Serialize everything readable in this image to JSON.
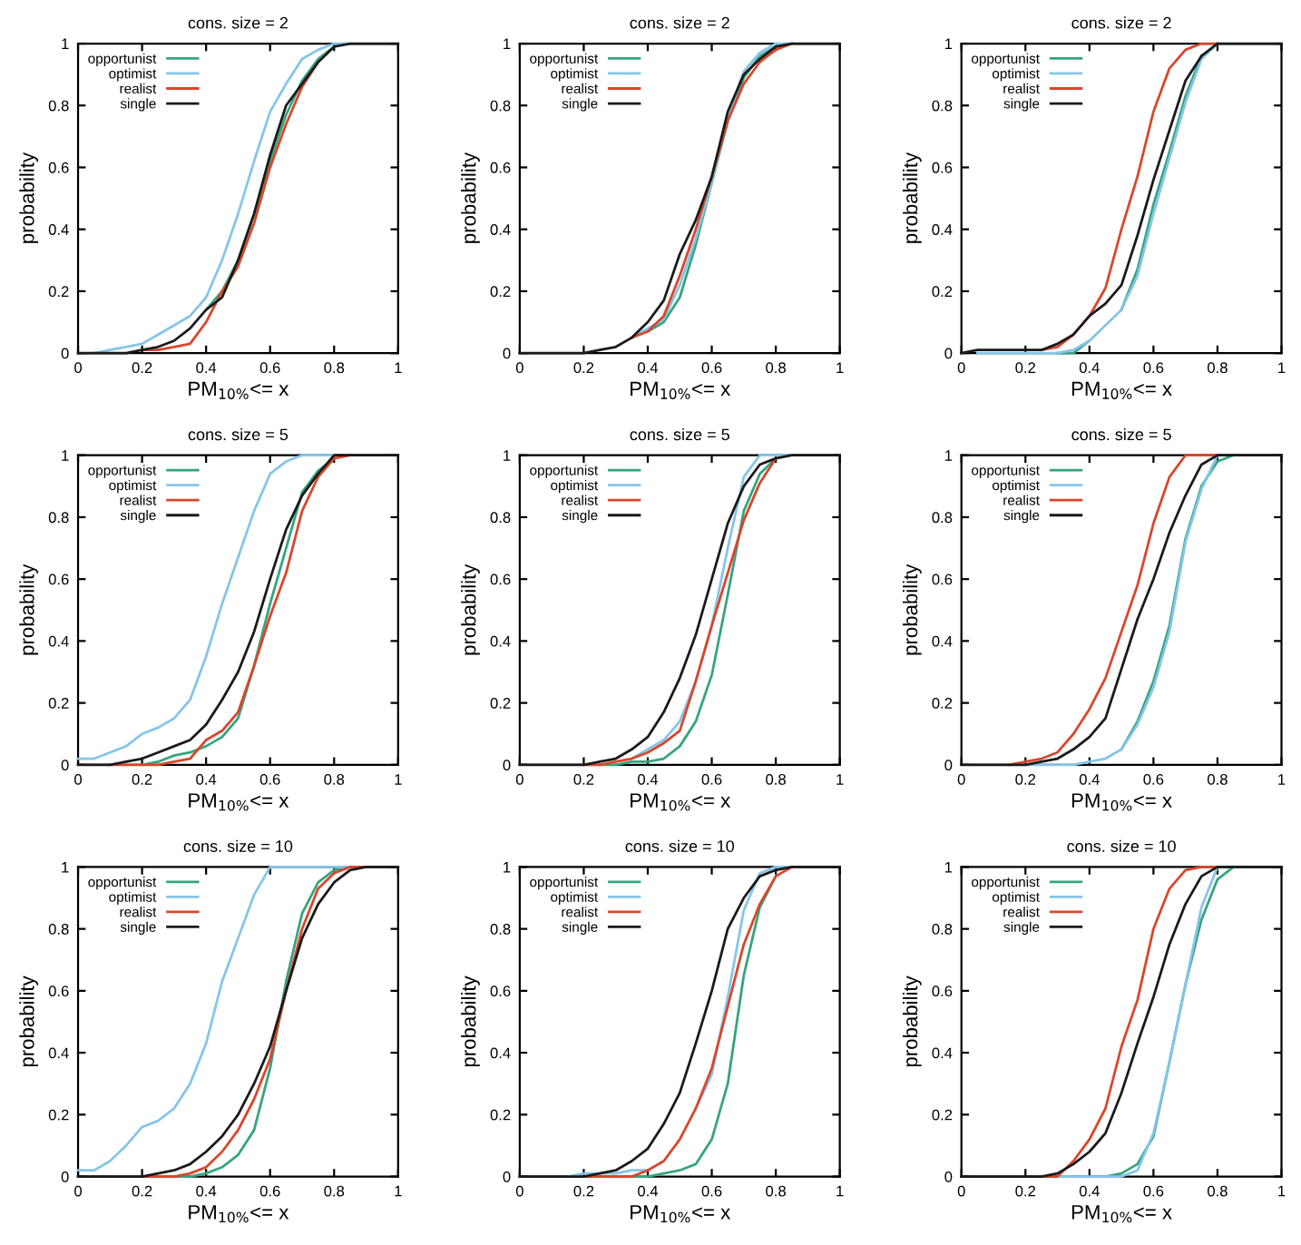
{
  "chart_data": [
    {
      "type": "line",
      "title": "cons. size = 2",
      "xlabel": "PM$_{10%}$<= x",
      "ylabel": "probability",
      "legend": "top left",
      "xlim": [
        0,
        1
      ],
      "ylim": [
        0,
        1
      ],
      "xticks": [
        0,
        0.2,
        0.4,
        0.6,
        0.8,
        1
      ],
      "yticks": [
        0,
        0.2,
        0.4,
        0.6,
        0.8,
        1
      ],
      "x": [
        0,
        0.05,
        0.1,
        0.15,
        0.2,
        0.25,
        0.3,
        0.35,
        0.4,
        0.45,
        0.5,
        0.55,
        0.6,
        0.65,
        0.7,
        0.75,
        0.8,
        0.85,
        0.9,
        0.95,
        1
      ],
      "series": [
        {
          "name": "opportunist",
          "color": "#35a47f",
          "values": [
            null,
            null,
            null,
            null,
            null,
            null,
            null,
            null,
            0.14,
            0.2,
            0.3,
            0.45,
            0.62,
            0.77,
            0.88,
            0.95,
            0.99,
            null,
            null,
            null,
            null
          ]
        },
        {
          "name": "optimist",
          "color": "#86c5e8",
          "values": [
            null,
            0,
            0.01,
            0.02,
            0.03,
            0.06,
            0.09,
            0.12,
            0.18,
            0.3,
            0.45,
            0.62,
            0.78,
            0.87,
            0.95,
            0.98,
            1,
            1,
            null,
            null,
            null
          ]
        },
        {
          "name": "realist",
          "color": "#d9462c",
          "values": [
            null,
            null,
            null,
            null,
            0.01,
            0.01,
            0.02,
            0.03,
            0.1,
            0.2,
            0.28,
            0.42,
            0.6,
            0.74,
            0.86,
            0.94,
            null,
            null,
            null,
            null,
            null
          ]
        },
        {
          "name": "single",
          "color": "#1a1a1a",
          "values": [
            0,
            0,
            0,
            0,
            0.01,
            0.02,
            0.04,
            0.08,
            0.14,
            0.18,
            0.3,
            0.45,
            0.64,
            0.8,
            0.87,
            0.94,
            0.99,
            1,
            1,
            1,
            1
          ]
        }
      ]
    },
    {
      "type": "line",
      "title": "cons. size = 2",
      "xlabel": "PM$_{10%}$<= x",
      "ylabel": "probability",
      "legend": "top left",
      "xlim": [
        0,
        1
      ],
      "ylim": [
        0,
        1
      ],
      "xticks": [
        0,
        0.2,
        0.4,
        0.6,
        0.8,
        1
      ],
      "yticks": [
        0,
        0.2,
        0.4,
        0.6,
        0.8,
        1
      ],
      "x": [
        0,
        0.05,
        0.1,
        0.15,
        0.2,
        0.25,
        0.3,
        0.35,
        0.4,
        0.45,
        0.5,
        0.55,
        0.6,
        0.65,
        0.7,
        0.75,
        0.8,
        0.85,
        0.9,
        0.95,
        1
      ],
      "series": [
        {
          "name": "opportunist",
          "color": "#35a47f",
          "values": [
            null,
            null,
            null,
            null,
            null,
            null,
            null,
            null,
            0.07,
            0.1,
            0.18,
            0.35,
            0.55,
            0.75,
            0.89,
            0.96,
            0.99,
            null,
            null,
            null,
            null
          ]
        },
        {
          "name": "optimist",
          "color": "#86c5e8",
          "values": [
            null,
            null,
            null,
            null,
            null,
            null,
            null,
            0.05,
            0.08,
            0.11,
            0.22,
            0.37,
            0.55,
            0.76,
            0.91,
            0.97,
            1,
            1,
            null,
            null,
            null
          ]
        },
        {
          "name": "realist",
          "color": "#d9462c",
          "values": [
            null,
            null,
            null,
            null,
            null,
            null,
            null,
            0.05,
            0.07,
            0.12,
            0.25,
            0.4,
            0.57,
            0.75,
            0.87,
            0.94,
            0.98,
            1,
            null,
            null,
            null
          ]
        },
        {
          "name": "single",
          "color": "#1a1a1a",
          "values": [
            0,
            0,
            0,
            0,
            0,
            0.01,
            0.02,
            0.05,
            0.1,
            0.17,
            0.32,
            0.43,
            0.57,
            0.78,
            0.9,
            0.95,
            0.99,
            1,
            1,
            1,
            1
          ]
        }
      ]
    },
    {
      "type": "line",
      "title": "cons. size = 2",
      "xlabel": "PM$_{10%}$<= x",
      "ylabel": "probability",
      "legend": "top left",
      "xlim": [
        0,
        1
      ],
      "ylim": [
        0,
        1
      ],
      "xticks": [
        0,
        0.2,
        0.4,
        0.6,
        0.8,
        1
      ],
      "yticks": [
        0,
        0.2,
        0.4,
        0.6,
        0.8,
        1
      ],
      "x": [
        0,
        0.05,
        0.1,
        0.15,
        0.2,
        0.25,
        0.3,
        0.35,
        0.4,
        0.45,
        0.5,
        0.55,
        0.6,
        0.65,
        0.7,
        0.75,
        0.8,
        0.85,
        0.9,
        0.95,
        1
      ],
      "series": [
        {
          "name": "opportunist",
          "color": "#35a47f",
          "values": [
            null,
            null,
            null,
            null,
            null,
            null,
            0,
            0,
            0.04,
            null,
            0.14,
            0.27,
            0.48,
            0.65,
            0.83,
            0.96,
            null,
            null,
            null,
            null,
            null
          ]
        },
        {
          "name": "optimist",
          "color": "#86c5e8",
          "values": [
            null,
            0,
            0,
            0,
            0,
            0,
            0,
            0.01,
            0.04,
            0.09,
            0.14,
            0.25,
            0.45,
            0.63,
            0.81,
            0.95,
            1,
            null,
            null,
            null,
            null
          ]
        },
        {
          "name": "realist",
          "color": "#d9462c",
          "values": [
            null,
            null,
            null,
            null,
            null,
            0.01,
            0.02,
            0.06,
            0.12,
            0.21,
            0.4,
            0.57,
            0.78,
            0.92,
            0.98,
            1,
            1,
            null,
            null,
            null,
            null
          ]
        },
        {
          "name": "single",
          "color": "#1a1a1a",
          "values": [
            0,
            0.01,
            0.01,
            0.01,
            0.01,
            0.01,
            0.03,
            0.06,
            0.12,
            0.16,
            0.22,
            0.38,
            0.56,
            0.72,
            0.88,
            0.96,
            1,
            1,
            1,
            1,
            1
          ]
        }
      ]
    },
    {
      "type": "line",
      "title": "cons. size = 5",
      "xlabel": "PM$_{10%}$<= x",
      "ylabel": "probability",
      "legend": "top left",
      "xlim": [
        0,
        1
      ],
      "ylim": [
        0,
        1
      ],
      "xticks": [
        0,
        0.2,
        0.4,
        0.6,
        0.8,
        1
      ],
      "yticks": [
        0,
        0.2,
        0.4,
        0.6,
        0.8,
        1
      ],
      "x": [
        0,
        0.05,
        0.1,
        0.15,
        0.2,
        0.25,
        0.3,
        0.35,
        0.4,
        0.45,
        0.5,
        0.55,
        0.6,
        0.65,
        0.7,
        0.75,
        0.8,
        0.85,
        0.9,
        0.95,
        1
      ],
      "series": [
        {
          "name": "opportunist",
          "color": "#35a47f",
          "values": [
            null,
            null,
            null,
            null,
            0,
            0.01,
            0.03,
            0.04,
            0.06,
            0.09,
            0.15,
            0.32,
            0.52,
            0.7,
            0.88,
            0.95,
            0.99,
            null,
            null,
            null,
            null
          ]
        },
        {
          "name": "optimist",
          "color": "#86c5e8",
          "values": [
            0.02,
            0.02,
            0.04,
            0.06,
            0.1,
            0.12,
            0.15,
            0.21,
            0.35,
            0.52,
            0.67,
            0.82,
            0.94,
            0.98,
            1,
            1,
            1,
            null,
            null,
            null,
            null
          ]
        },
        {
          "name": "realist",
          "color": "#d9462c",
          "values": [
            null,
            null,
            0,
            0,
            0,
            0,
            0.01,
            0.02,
            0.08,
            0.11,
            0.17,
            0.32,
            0.48,
            0.62,
            0.82,
            0.93,
            0.99,
            1,
            null,
            null,
            null
          ]
        },
        {
          "name": "single",
          "color": "#1a1a1a",
          "values": [
            0,
            0,
            0,
            0.01,
            0.02,
            0.04,
            0.06,
            0.08,
            0.13,
            0.21,
            0.3,
            0.43,
            0.6,
            0.76,
            0.87,
            0.94,
            1,
            1,
            1,
            1,
            1
          ]
        }
      ]
    },
    {
      "type": "line",
      "title": "cons. size = 5",
      "xlabel": "PM$_{10%}$<= x",
      "ylabel": "probability",
      "legend": "top left",
      "xlim": [
        0,
        1
      ],
      "ylim": [
        0,
        1
      ],
      "xticks": [
        0,
        0.2,
        0.4,
        0.6,
        0.8,
        1
      ],
      "yticks": [
        0,
        0.2,
        0.4,
        0.6,
        0.8,
        1
      ],
      "x": [
        0,
        0.05,
        0.1,
        0.15,
        0.2,
        0.25,
        0.3,
        0.35,
        0.4,
        0.45,
        0.5,
        0.55,
        0.6,
        0.65,
        0.7,
        0.75,
        0.8,
        0.85,
        0.9,
        0.95,
        1
      ],
      "series": [
        {
          "name": "opportunist",
          "color": "#35a47f",
          "values": [
            null,
            null,
            null,
            null,
            null,
            0,
            0,
            0.01,
            0.01,
            0.02,
            0.06,
            0.14,
            0.29,
            0.55,
            0.82,
            0.94,
            0.99,
            null,
            null,
            null,
            null
          ]
        },
        {
          "name": "optimist",
          "color": "#86c5e8",
          "values": [
            null,
            null,
            null,
            null,
            null,
            null,
            null,
            0.02,
            0.05,
            0.08,
            0.14,
            0.27,
            0.45,
            0.7,
            0.93,
            1,
            1,
            1,
            null,
            null,
            null
          ]
        },
        {
          "name": "realist",
          "color": "#d9462c",
          "values": [
            null,
            null,
            null,
            null,
            0,
            0,
            0.01,
            0.02,
            0.04,
            0.07,
            0.11,
            0.27,
            0.45,
            0.62,
            0.79,
            0.91,
            0.99,
            null,
            null,
            null,
            null
          ]
        },
        {
          "name": "single",
          "color": "#1a1a1a",
          "values": [
            0,
            0,
            0,
            0,
            0,
            0.01,
            0.02,
            0.05,
            0.09,
            0.17,
            0.28,
            0.42,
            0.6,
            0.78,
            0.9,
            0.97,
            0.99,
            1,
            1,
            1,
            1
          ]
        }
      ]
    },
    {
      "type": "line",
      "title": "cons. size = 5",
      "xlabel": "PM$_{10%}$<= x",
      "ylabel": "probability",
      "legend": "top left",
      "xlim": [
        0,
        1
      ],
      "ylim": [
        0,
        1
      ],
      "xticks": [
        0,
        0.2,
        0.4,
        0.6,
        0.8,
        1
      ],
      "yticks": [
        0,
        0.2,
        0.4,
        0.6,
        0.8,
        1
      ],
      "x": [
        0,
        0.05,
        0.1,
        0.15,
        0.2,
        0.25,
        0.3,
        0.35,
        0.4,
        0.45,
        0.5,
        0.55,
        0.6,
        0.65,
        0.7,
        0.75,
        0.8,
        0.85,
        0.9,
        0.95,
        1
      ],
      "series": [
        {
          "name": "opportunist",
          "color": "#35a47f",
          "values": [
            null,
            null,
            null,
            null,
            null,
            null,
            null,
            null,
            null,
            null,
            0.05,
            0.14,
            0.27,
            0.45,
            0.73,
            0.9,
            0.98,
            1,
            null,
            null,
            null
          ]
        },
        {
          "name": "optimist",
          "color": "#86c5e8",
          "values": [
            null,
            null,
            null,
            null,
            0,
            0,
            0,
            0,
            0.01,
            0.02,
            0.05,
            0.13,
            0.25,
            0.43,
            0.72,
            0.89,
            1,
            null,
            null,
            null,
            null
          ]
        },
        {
          "name": "realist",
          "color": "#d9462c",
          "values": [
            null,
            null,
            null,
            0,
            0.01,
            0.02,
            0.04,
            0.1,
            0.18,
            0.28,
            0.43,
            0.58,
            0.78,
            0.93,
            1,
            1,
            1,
            null,
            null,
            null,
            null
          ]
        },
        {
          "name": "single",
          "color": "#1a1a1a",
          "values": [
            0,
            0,
            0,
            0,
            0,
            0.01,
            0.02,
            0.05,
            0.09,
            0.15,
            0.31,
            0.47,
            0.6,
            0.75,
            0.87,
            0.97,
            1,
            1,
            1,
            1,
            1
          ]
        }
      ]
    },
    {
      "type": "line",
      "title": "cons. size = 10",
      "xlabel": "PM$_{10%}$<= x",
      "ylabel": "probability",
      "legend": "top left",
      "xlim": [
        0,
        1
      ],
      "ylim": [
        0,
        1
      ],
      "xticks": [
        0,
        0.2,
        0.4,
        0.6,
        0.8,
        1
      ],
      "yticks": [
        0,
        0.2,
        0.4,
        0.6,
        0.8,
        1
      ],
      "x": [
        0,
        0.05,
        0.1,
        0.15,
        0.2,
        0.25,
        0.3,
        0.35,
        0.4,
        0.45,
        0.5,
        0.55,
        0.6,
        0.65,
        0.7,
        0.75,
        0.8,
        0.85,
        0.9,
        0.95,
        1
      ],
      "series": [
        {
          "name": "opportunist",
          "color": "#35a47f",
          "values": [
            null,
            null,
            null,
            null,
            null,
            null,
            0,
            0,
            0.01,
            0.03,
            0.07,
            0.15,
            0.35,
            0.63,
            0.85,
            0.95,
            0.99,
            1,
            null,
            null,
            null
          ]
        },
        {
          "name": "optimist",
          "color": "#86c5e8",
          "values": [
            0.02,
            0.02,
            0.05,
            0.1,
            0.16,
            0.18,
            0.22,
            0.3,
            0.43,
            0.63,
            0.77,
            0.91,
            1,
            1,
            1,
            1,
            1,
            1,
            null,
            null,
            null
          ]
        },
        {
          "name": "realist",
          "color": "#d9462c",
          "values": [
            null,
            null,
            null,
            null,
            0,
            0,
            0,
            0.01,
            0.03,
            0.08,
            0.15,
            0.25,
            0.38,
            0.6,
            0.8,
            0.93,
            0.98,
            1,
            1,
            null,
            null
          ]
        },
        {
          "name": "single",
          "color": "#1a1a1a",
          "values": [
            0,
            0,
            0,
            0,
            0,
            0.01,
            0.02,
            0.04,
            0.08,
            0.13,
            0.2,
            0.3,
            0.42,
            0.6,
            0.77,
            0.88,
            0.95,
            0.99,
            1,
            1,
            1
          ]
        }
      ]
    },
    {
      "type": "line",
      "title": "cons. size = 10",
      "xlabel": "PM$_{10%}$<= x",
      "ylabel": "probability",
      "legend": "top left",
      "xlim": [
        0,
        1
      ],
      "ylim": [
        0,
        1
      ],
      "xticks": [
        0,
        0.2,
        0.4,
        0.6,
        0.8,
        1
      ],
      "yticks": [
        0,
        0.2,
        0.4,
        0.6,
        0.8,
        1
      ],
      "x": [
        0,
        0.05,
        0.1,
        0.15,
        0.2,
        0.25,
        0.3,
        0.35,
        0.4,
        0.45,
        0.5,
        0.55,
        0.6,
        0.65,
        0.7,
        0.75,
        0.8,
        0.85,
        0.9,
        0.95,
        1
      ],
      "series": [
        {
          "name": "opportunist",
          "color": "#35a47f",
          "values": [
            null,
            null,
            null,
            null,
            null,
            null,
            null,
            0,
            0,
            0.01,
            0.02,
            0.04,
            0.12,
            0.3,
            0.65,
            0.87,
            0.97,
            null,
            null,
            null,
            null
          ]
        },
        {
          "name": "optimist",
          "color": "#86c5e8",
          "values": [
            null,
            null,
            null,
            0,
            0.01,
            0.01,
            0.01,
            0.02,
            0.02,
            null,
            null,
            0.22,
            0.33,
            0.58,
            0.86,
            0.98,
            1,
            1,
            null,
            null,
            null
          ]
        },
        {
          "name": "realist",
          "color": "#d9462c",
          "values": [
            null,
            null,
            null,
            null,
            0,
            0,
            0,
            0,
            0.02,
            0.05,
            0.12,
            0.22,
            0.35,
            0.55,
            0.75,
            0.88,
            0.97,
            1,
            null,
            null,
            null
          ]
        },
        {
          "name": "single",
          "color": "#1a1a1a",
          "values": [
            0,
            0,
            0,
            0,
            0,
            0.01,
            0.02,
            0.05,
            0.09,
            0.17,
            0.27,
            0.43,
            0.6,
            0.8,
            0.9,
            0.97,
            0.99,
            1,
            1,
            1,
            1
          ]
        }
      ]
    },
    {
      "type": "line",
      "title": "cons. size = 10",
      "xlabel": "PM$_{10%}$<= x",
      "ylabel": "probability",
      "legend": "top left",
      "xlim": [
        0,
        1
      ],
      "ylim": [
        0,
        1
      ],
      "xticks": [
        0,
        0.2,
        0.4,
        0.6,
        0.8,
        1
      ],
      "yticks": [
        0,
        0.2,
        0.4,
        0.6,
        0.8,
        1
      ],
      "x": [
        0,
        0.05,
        0.1,
        0.15,
        0.2,
        0.25,
        0.3,
        0.35,
        0.4,
        0.45,
        0.5,
        0.55,
        0.6,
        0.65,
        0.7,
        0.75,
        0.8,
        0.85,
        0.9,
        0.95,
        1
      ],
      "series": [
        {
          "name": "opportunist",
          "color": "#35a47f",
          "values": [
            null,
            null,
            null,
            null,
            null,
            null,
            null,
            null,
            null,
            0,
            0.01,
            0.04,
            0.13,
            0.37,
            0.62,
            0.83,
            0.96,
            1,
            null,
            null,
            null
          ]
        },
        {
          "name": "optimist",
          "color": "#86c5e8",
          "values": [
            null,
            null,
            null,
            null,
            null,
            null,
            0,
            0,
            0,
            0,
            0,
            0.02,
            0.14,
            0.37,
            0.62,
            0.87,
            1,
            null,
            null,
            null,
            null
          ]
        },
        {
          "name": "realist",
          "color": "#d9462c",
          "values": [
            null,
            null,
            null,
            null,
            null,
            0,
            0,
            0.05,
            0.12,
            0.22,
            0.42,
            0.57,
            0.8,
            0.93,
            0.99,
            1,
            1,
            null,
            null,
            null,
            null
          ]
        },
        {
          "name": "single",
          "color": "#1a1a1a",
          "values": [
            0,
            0,
            0,
            0,
            0,
            0,
            0.01,
            0.04,
            0.08,
            0.14,
            0.27,
            0.43,
            0.58,
            0.75,
            0.88,
            0.97,
            1,
            1,
            1,
            1,
            1
          ]
        }
      ]
    }
  ]
}
